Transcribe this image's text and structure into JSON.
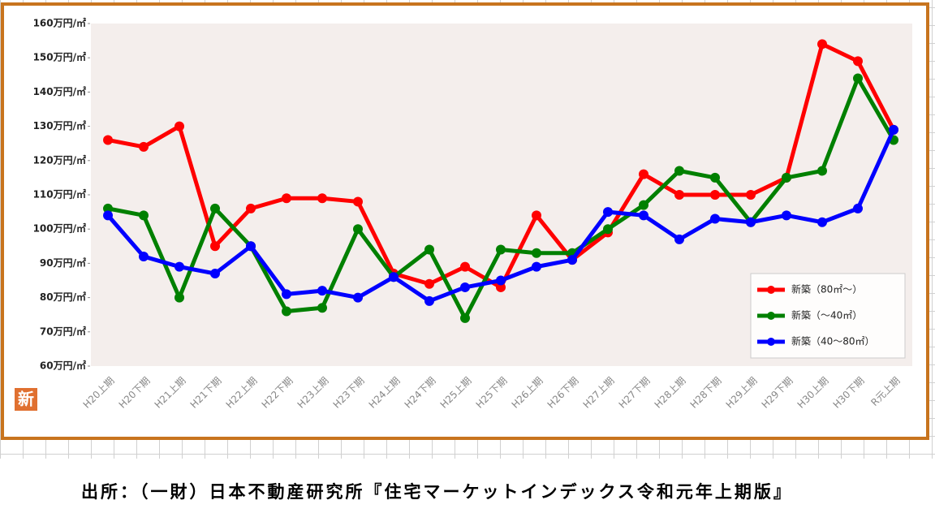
{
  "chart_data": {
    "type": "line",
    "categories": [
      "H20上期",
      "H20下期",
      "H21上期",
      "H21下期",
      "H22上期",
      "H22下期",
      "H23上期",
      "H23下期",
      "H24上期",
      "H24下期",
      "H25上期",
      "H25下期",
      "H26上期",
      "H26下期",
      "H27上期",
      "H27下期",
      "H28上期",
      "H28下期",
      "H29上期",
      "H29下期",
      "H30上期",
      "H30下期",
      "R元上期"
    ],
    "series": [
      {
        "name": "新築（80㎡～）",
        "color": "#ff0000",
        "values": [
          126,
          124,
          130,
          95,
          106,
          109,
          109,
          108,
          87,
          84,
          89,
          83,
          104,
          91,
          99,
          116,
          110,
          110,
          110,
          115,
          154,
          149,
          129
        ]
      },
      {
        "name": "新築（～40㎡）",
        "color": "#008000",
        "values": [
          106,
          104,
          80,
          106,
          95,
          76,
          77,
          100,
          86,
          94,
          74,
          94,
          93,
          93,
          100,
          107,
          117,
          115,
          102,
          115,
          117,
          144,
          126
        ]
      },
      {
        "name": "新築（40～80㎡）",
        "color": "#0000ff",
        "values": [
          104,
          92,
          89,
          87,
          95,
          81,
          82,
          80,
          86,
          79,
          83,
          85,
          89,
          91,
          105,
          104,
          97,
          103,
          102,
          104,
          102,
          106,
          129
        ]
      }
    ],
    "ylim": [
      60,
      160
    ],
    "yticks": [
      {
        "value": 60,
        "label": "60万円/㎡"
      },
      {
        "value": 70,
        "label": "70万円/㎡"
      },
      {
        "value": 80,
        "label": "80万円/㎡"
      },
      {
        "value": 90,
        "label": "90万円/㎡"
      },
      {
        "value": 100,
        "label": "100万円/㎡"
      },
      {
        "value": 110,
        "label": "110万円/㎡"
      },
      {
        "value": 120,
        "label": "120万円/㎡"
      },
      {
        "value": 130,
        "label": "130万円/㎡"
      },
      {
        "value": 140,
        "label": "140万円/㎡"
      },
      {
        "value": 150,
        "label": "150万円/㎡"
      },
      {
        "value": 160,
        "label": "160万円/㎡"
      }
    ],
    "legend_position": "bottom-right",
    "logo": "新",
    "source": "出所：（一財）日本不動産研究所『住宅マーケットインデックス令和元年上期版』"
  }
}
